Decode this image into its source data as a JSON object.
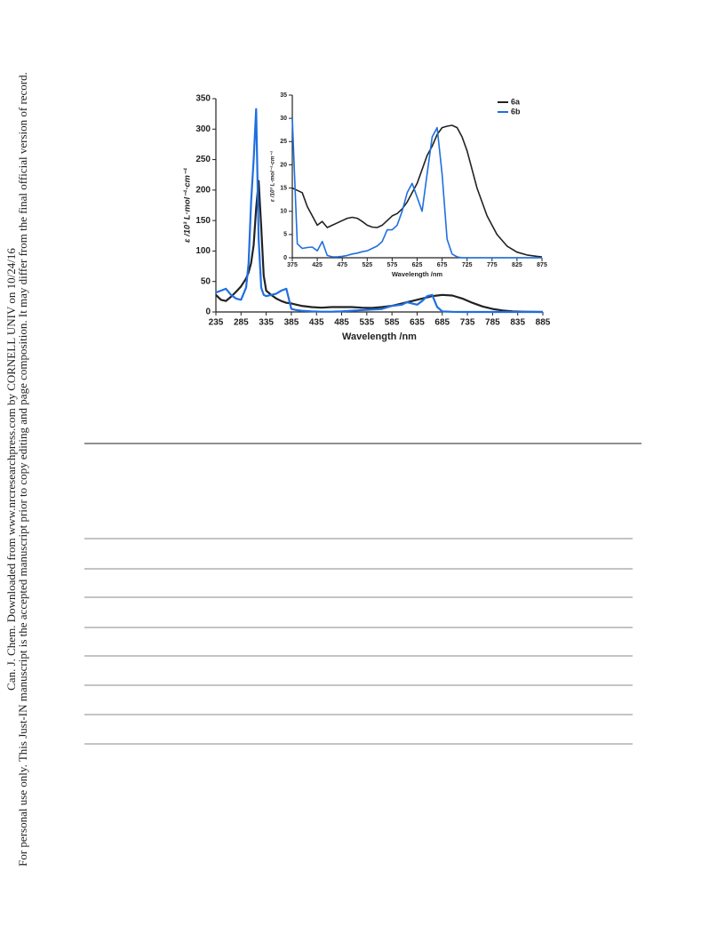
{
  "watermark": {
    "line1": "Can. J. Chem. Downloaded from www.nrcresearchpress.com by CORNELL UNIV on 10/24/16",
    "line2": "For personal use only. This Just-IN manuscript is the accepted manuscript prior to copy editing and page composition. It may differ from the final official version of record."
  },
  "chart_data": [
    {
      "type": "line",
      "xlabel": "Wavelength /nm",
      "ylabel": "ε /10³ L·mol⁻¹·cm⁻¹",
      "x": [
        235,
        245,
        255,
        265,
        275,
        285,
        295,
        300,
        305,
        310,
        315,
        320,
        325,
        330,
        335,
        345,
        355,
        365,
        375,
        385,
        395,
        405,
        425,
        445,
        465,
        485,
        505,
        525,
        545,
        565,
        585,
        605,
        615,
        625,
        635,
        645,
        655,
        665,
        675,
        685,
        705,
        725,
        745,
        765,
        785,
        805,
        825,
        845,
        865,
        885
      ],
      "series": [
        {
          "name": "6a",
          "color": "#222222",
          "values": [
            28,
            20,
            18,
            25,
            33,
            42,
            55,
            65,
            80,
            110,
            170,
            215,
            140,
            60,
            35,
            28,
            22,
            18,
            15,
            14,
            12,
            10,
            8,
            7,
            8,
            8,
            8,
            7,
            6.5,
            8,
            10,
            14,
            16,
            18,
            20,
            22,
            24,
            26,
            27,
            28,
            27,
            22,
            15,
            9,
            5,
            2.5,
            1,
            0.5,
            0.2,
            0
          ]
        },
        {
          "name": "6b",
          "color": "#1f6fe0",
          "values": [
            32,
            35,
            38,
            28,
            22,
            20,
            40,
            80,
            180,
            250,
            333,
            120,
            40,
            28,
            26,
            28,
            30,
            35,
            38,
            5,
            3,
            2,
            1,
            0.5,
            0.5,
            1,
            2,
            3,
            4,
            5,
            10,
            12,
            16,
            14,
            12,
            18,
            26,
            28,
            8,
            1,
            0.3,
            0,
            0,
            0,
            0,
            0,
            0,
            0,
            0,
            0
          ]
        }
      ],
      "xlim": [
        235,
        885
      ],
      "ylim": [
        0,
        350
      ],
      "xticks": [
        235,
        285,
        335,
        385,
        435,
        485,
        535,
        585,
        635,
        685,
        735,
        785,
        835,
        885
      ],
      "yticks": [
        0,
        50,
        100,
        150,
        200,
        250,
        300,
        350
      ]
    },
    {
      "type": "line",
      "xlabel": "Wavelength /nm",
      "ylabel": "ε /10³ L·mol⁻¹·cm⁻¹",
      "legend": "upper right",
      "x": [
        375,
        385,
        395,
        405,
        415,
        425,
        435,
        445,
        455,
        465,
        475,
        485,
        495,
        505,
        515,
        525,
        535,
        545,
        555,
        565,
        575,
        585,
        595,
        605,
        615,
        625,
        635,
        645,
        655,
        665,
        675,
        685,
        695,
        705,
        715,
        725,
        745,
        765,
        785,
        805,
        825,
        845,
        865,
        875
      ],
      "series": [
        {
          "name": "6a",
          "color": "#222222",
          "values": [
            15,
            14.5,
            14,
            11,
            9,
            7,
            7.8,
            6.5,
            7,
            7.5,
            8,
            8.5,
            8.7,
            8.5,
            7.8,
            7,
            6.6,
            6.5,
            7,
            8,
            9,
            9.5,
            10.5,
            12,
            14,
            16,
            19,
            22,
            24,
            26.5,
            28,
            28.3,
            28.5,
            28,
            26,
            23,
            15,
            9,
            5,
            2.5,
            1.2,
            0.6,
            0.3,
            0.2
          ]
        },
        {
          "name": "6b",
          "color": "#1f6fe0",
          "values": [
            30,
            3,
            2,
            2.2,
            2.3,
            1.5,
            3.5,
            0.5,
            0.2,
            0.2,
            0.3,
            0.5,
            0.8,
            1,
            1.3,
            1.5,
            2,
            2.5,
            3.5,
            6,
            6,
            7,
            10,
            14,
            16,
            13,
            10,
            18,
            26,
            28,
            18,
            4,
            0.8,
            0.2,
            0,
            0,
            0,
            0,
            0,
            0,
            0,
            0,
            0,
            0
          ]
        }
      ],
      "xlim": [
        375,
        875
      ],
      "ylim": [
        0,
        35
      ],
      "xticks": [
        375,
        425,
        475,
        525,
        575,
        625,
        675,
        725,
        775,
        825,
        875
      ],
      "yticks": [
        0,
        5,
        10,
        15,
        20,
        25,
        30,
        35
      ]
    }
  ]
}
